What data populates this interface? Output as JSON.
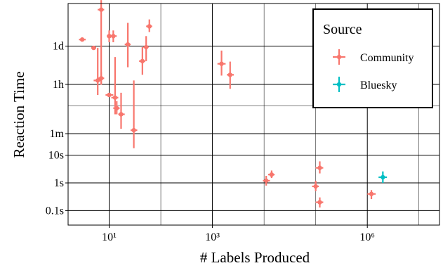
{
  "colors": {
    "community": "#F8766D",
    "bluesky": "#00BFC4",
    "panel": "#ffffff",
    "grid": "#000000"
  },
  "chart_data": {
    "type": "scatter",
    "xlabel": "# Labels Produced",
    "ylabel": "Reaction Time",
    "x_scale": "log10",
    "y_scale": "log10 (seconds)",
    "xlim": [
      1.6,
      25000000
    ],
    "ylim_seconds": [
      0.03,
      3000000
    ],
    "x_ticks": [
      {
        "value": 10,
        "label": "10¹"
      },
      {
        "value": 1000,
        "label": "10³"
      },
      {
        "value": 1000000,
        "label": "10⁶"
      }
    ],
    "y_ticks": [
      {
        "value": 0.1,
        "label": "0.1s"
      },
      {
        "value": 1,
        "label": "1s"
      },
      {
        "value": 10,
        "label": "10s"
      },
      {
        "value": 60,
        "label": "1m"
      },
      {
        "value": 3600,
        "label": "1h"
      },
      {
        "value": 86400,
        "label": "1d"
      }
    ],
    "grid": true,
    "legend": {
      "title": "Source",
      "position": "top-right",
      "entries": [
        {
          "label": "Community",
          "series": "community"
        },
        {
          "label": "Bluesky",
          "series": "bluesky"
        }
      ]
    },
    "series": [
      {
        "name": "Community",
        "points": [
          {
            "x": 3,
            "y": 150000,
            "xmin": 2.6,
            "xmax": 3.5,
            "ymin": 150000,
            "ymax": 150000
          },
          {
            "x": 5,
            "y": 75000,
            "xmin": 4.5,
            "xmax": 5.6,
            "ymin": 75000,
            "ymax": 75000
          },
          {
            "x": 6,
            "y": 5000,
            "xmin": 5,
            "xmax": 7,
            "ymin": 1500,
            "ymax": 75000
          },
          {
            "x": 7,
            "y": 1800000,
            "xmin": 6,
            "xmax": 8,
            "ymin": 3500,
            "ymax": 4000000
          },
          {
            "x": 7,
            "y": 6000,
            "xmin": 6,
            "xmax": 8,
            "ymin": 3700,
            "ymax": 10000
          },
          {
            "x": 10,
            "y": 200000,
            "xmin": 9,
            "xmax": 11,
            "ymin": 120000,
            "ymax": 320000
          },
          {
            "x": 10,
            "y": 1500,
            "xmin": 8.5,
            "xmax": 12,
            "ymin": 1500,
            "ymax": 1500
          },
          {
            "x": 12,
            "y": 200000,
            "xmin": 10.5,
            "xmax": 14,
            "ymin": 120000,
            "ymax": 320000
          },
          {
            "x": 13,
            "y": 1200,
            "xmin": 11,
            "xmax": 15,
            "ymin": 300,
            "ymax": 35000
          },
          {
            "x": 14,
            "y": 500,
            "xmin": 12,
            "xmax": 16,
            "ymin": 300,
            "ymax": 900
          },
          {
            "x": 17,
            "y": 300,
            "xmin": 15,
            "xmax": 20,
            "ymin": 90,
            "ymax": 1800
          },
          {
            "x": 23,
            "y": 100000,
            "xmin": 20,
            "xmax": 26,
            "ymin": 15000,
            "ymax": 600000
          },
          {
            "x": 30,
            "y": 80,
            "xmin": 26,
            "xmax": 35,
            "ymin": 18,
            "ymax": 5000
          },
          {
            "x": 44,
            "y": 25000,
            "xmin": 38,
            "xmax": 50,
            "ymin": 8000,
            "ymax": 80000
          },
          {
            "x": 52,
            "y": 80000,
            "xmin": 46,
            "xmax": 58,
            "ymin": 25000,
            "ymax": 200000
          },
          {
            "x": 60,
            "y": 450000,
            "xmin": 52,
            "xmax": 68,
            "ymin": 280000,
            "ymax": 800000
          },
          {
            "x": 1500,
            "y": 20000,
            "xmin": 1250,
            "xmax": 1800,
            "ymin": 7500,
            "ymax": 60000
          },
          {
            "x": 2200,
            "y": 8000,
            "xmin": 1900,
            "xmax": 2600,
            "ymin": 2500,
            "ymax": 24000
          },
          {
            "x": 11000,
            "y": 1.2,
            "xmin": 9500,
            "xmax": 13000,
            "ymin": 0.8,
            "ymax": 1.8
          },
          {
            "x": 14000,
            "y": 2,
            "xmin": 12000,
            "xmax": 16000,
            "ymin": 1.5,
            "ymax": 2.8
          },
          {
            "x": 100000,
            "y": 0.75,
            "xmin": 85000,
            "xmax": 115000,
            "ymin": 0.5,
            "ymax": 1.2
          },
          {
            "x": 120000,
            "y": 3.5,
            "xmin": 100000,
            "xmax": 140000,
            "ymin": 2.2,
            "ymax": 6
          },
          {
            "x": 120000,
            "y": 0.2,
            "xmin": 100000,
            "xmax": 140000,
            "ymin": 0.13,
            "ymax": 0.3
          },
          {
            "x": 1200000,
            "y": 0.4,
            "xmin": 1000000,
            "xmax": 1450000,
            "ymin": 0.26,
            "ymax": 0.55
          }
        ]
      },
      {
        "name": "Bluesky",
        "points": [
          {
            "x": 2000000,
            "y": 1.6,
            "xmin": 1650000,
            "xmax": 2400000,
            "ymin": 1.0,
            "ymax": 2.6
          }
        ]
      }
    ]
  }
}
